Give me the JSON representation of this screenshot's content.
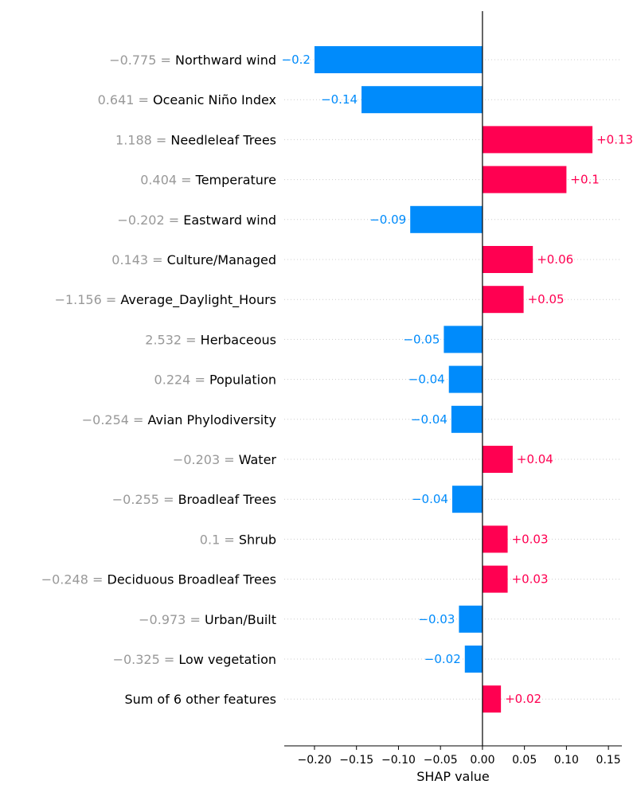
{
  "chart_data": {
    "type": "bar",
    "orientation": "horizontal",
    "xlabel": "SHAP value",
    "xlim": [
      -0.236,
      0.166
    ],
    "xticks": [
      -0.2,
      -0.15,
      -0.1,
      -0.05,
      0.0,
      0.05,
      0.1,
      0.15
    ],
    "xtick_labels": [
      "−0.20",
      "−0.15",
      "−0.10",
      "−0.05",
      "0.00",
      "0.05",
      "0.10",
      "0.15"
    ],
    "grid": "horizontal dotted",
    "colors": {
      "positive": "#ff0051",
      "negative": "#008bfb",
      "feature_value": "#999999"
    },
    "features": [
      {
        "value": "−0.775",
        "name": "Northward wind",
        "shap": -0.2,
        "label": "−0.2"
      },
      {
        "value": "0.641",
        "name": "Oceanic Niño Index",
        "shap": -0.144,
        "label": "−0.14"
      },
      {
        "value": "1.188",
        "name": "Needleleaf Trees",
        "shap": 0.131,
        "label": "+0.13"
      },
      {
        "value": "0.404",
        "name": "Temperature",
        "shap": 0.1,
        "label": "+0.1"
      },
      {
        "value": "−0.202",
        "name": "Eastward wind",
        "shap": -0.086,
        "label": "−0.09"
      },
      {
        "value": "0.143",
        "name": "Culture/Managed",
        "shap": 0.06,
        "label": "+0.06"
      },
      {
        "value": "−1.156",
        "name": "Average_Daylight_Hours",
        "shap": 0.049,
        "label": "+0.05"
      },
      {
        "value": "2.532",
        "name": "Herbaceous",
        "shap": -0.046,
        "label": "−0.05"
      },
      {
        "value": "0.224",
        "name": "Population",
        "shap": -0.04,
        "label": "−0.04"
      },
      {
        "value": "−0.254",
        "name": "Avian Phylodiversity",
        "shap": -0.037,
        "label": "−0.04"
      },
      {
        "value": "−0.203",
        "name": "Water",
        "shap": 0.036,
        "label": "+0.04"
      },
      {
        "value": "−0.255",
        "name": "Broadleaf Trees",
        "shap": -0.036,
        "label": "−0.04"
      },
      {
        "value": "0.1",
        "name": "Shrub",
        "shap": 0.03,
        "label": "+0.03"
      },
      {
        "value": "−0.248",
        "name": "Deciduous Broadleaf Trees",
        "shap": 0.03,
        "label": "+0.03"
      },
      {
        "value": "−0.973",
        "name": "Urban/Built",
        "shap": -0.028,
        "label": "−0.03"
      },
      {
        "value": "−0.325",
        "name": "Low vegetation",
        "shap": -0.021,
        "label": "−0.02"
      },
      {
        "value": "",
        "name": "Sum of 6 other features",
        "shap": 0.022,
        "label": "+0.02"
      }
    ]
  }
}
